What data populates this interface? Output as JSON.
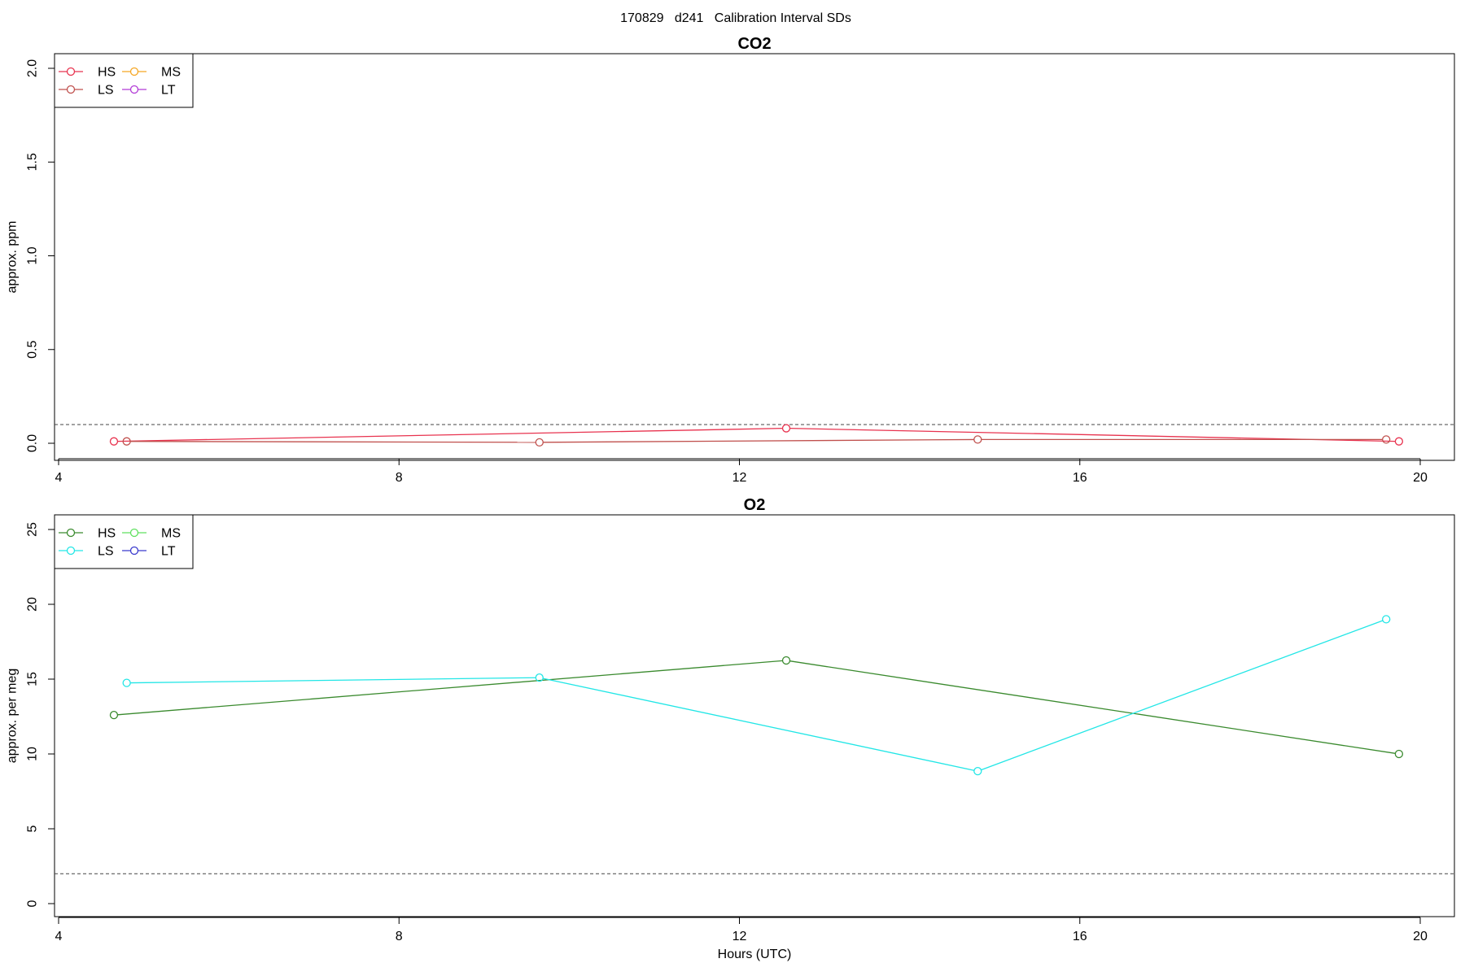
{
  "figure_title": "170829   d241   Calibration Interval SDs",
  "chart_data": [
    {
      "type": "line",
      "title": "CO2",
      "xlabel": "",
      "ylabel": "approx. ppm",
      "xlim": [
        4,
        20
      ],
      "ylim": [
        0,
        2.0
      ],
      "xticks": [
        4,
        8,
        12,
        16,
        20
      ],
      "yticks": [
        0.0,
        0.5,
        1.0,
        1.5,
        2.0
      ],
      "ytick_labels": [
        "0.0",
        "0.5",
        "1.0",
        "1.5",
        "2.0"
      ],
      "threshold": 0.1,
      "grid": false,
      "legend_position": "top-left",
      "legend": [
        {
          "name": "HS",
          "color": "#e8334f"
        },
        {
          "name": "LS",
          "color": "#c0504d"
        },
        {
          "name": "MS",
          "color": "#f5a623"
        },
        {
          "name": "LT",
          "color": "#b23bd6"
        }
      ],
      "series": [
        {
          "name": "HS",
          "color": "#e8334f",
          "x": [
            4.65,
            12.55,
            19.75
          ],
          "y": [
            0.01,
            0.08,
            0.01
          ]
        },
        {
          "name": "LS",
          "color": "#c0504d",
          "x": [
            4.8,
            9.65,
            14.8,
            19.6
          ],
          "y": [
            0.01,
            0.005,
            0.02,
            0.02
          ]
        }
      ]
    },
    {
      "type": "line",
      "title": "O2",
      "xlabel": "Hours (UTC)",
      "ylabel": "approx. per meg",
      "xlim": [
        4,
        20
      ],
      "ylim": [
        0,
        25
      ],
      "xticks": [
        4,
        8,
        12,
        16,
        20
      ],
      "yticks": [
        0,
        5,
        10,
        15,
        20,
        25
      ],
      "ytick_labels": [
        "0",
        "5",
        "10",
        "15",
        "20",
        "25"
      ],
      "threshold": 2,
      "grid": false,
      "legend_position": "top-left",
      "legend": [
        {
          "name": "HS",
          "color": "#3a8a2e"
        },
        {
          "name": "LS",
          "color": "#22e6e6"
        },
        {
          "name": "MS",
          "color": "#5fe05f"
        },
        {
          "name": "LT",
          "color": "#3a3acd"
        }
      ],
      "series": [
        {
          "name": "HS",
          "color": "#3a8a2e",
          "x": [
            4.65,
            12.55,
            19.75
          ],
          "y": [
            12.6,
            16.25,
            10.0
          ]
        },
        {
          "name": "LS",
          "color": "#22e6e6",
          "x": [
            4.8,
            9.65,
            14.8,
            19.6
          ],
          "y": [
            14.75,
            15.1,
            8.85,
            19.0
          ]
        }
      ]
    }
  ]
}
